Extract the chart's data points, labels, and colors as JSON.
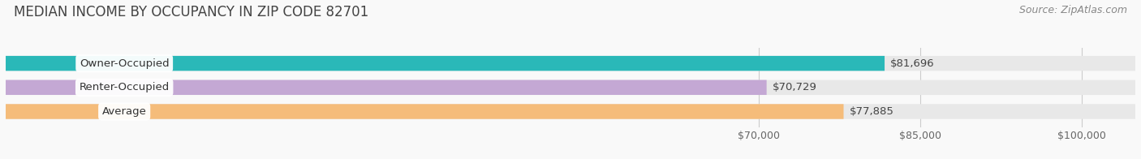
{
  "title": "MEDIAN INCOME BY OCCUPANCY IN ZIP CODE 82701",
  "source": "Source: ZipAtlas.com",
  "categories": [
    "Owner-Occupied",
    "Renter-Occupied",
    "Average"
  ],
  "values": [
    81696,
    70729,
    77885
  ],
  "bar_colors": [
    "#2ab8b8",
    "#c4a8d4",
    "#f5bc7a"
  ],
  "bar_bg_color": "#e8e8e8",
  "value_labels": [
    "$81,696",
    "$70,729",
    "$77,885"
  ],
  "xlim_min": 0,
  "xlim_max": 105000,
  "xticks": [
    70000,
    85000,
    100000
  ],
  "xtick_labels": [
    "$70,000",
    "$85,000",
    "$100,000"
  ],
  "title_fontsize": 12,
  "label_fontsize": 9.5,
  "tick_fontsize": 9,
  "source_fontsize": 9,
  "background_color": "#f9f9f9",
  "bar_rounding": 0.35,
  "bar_height": 0.62
}
